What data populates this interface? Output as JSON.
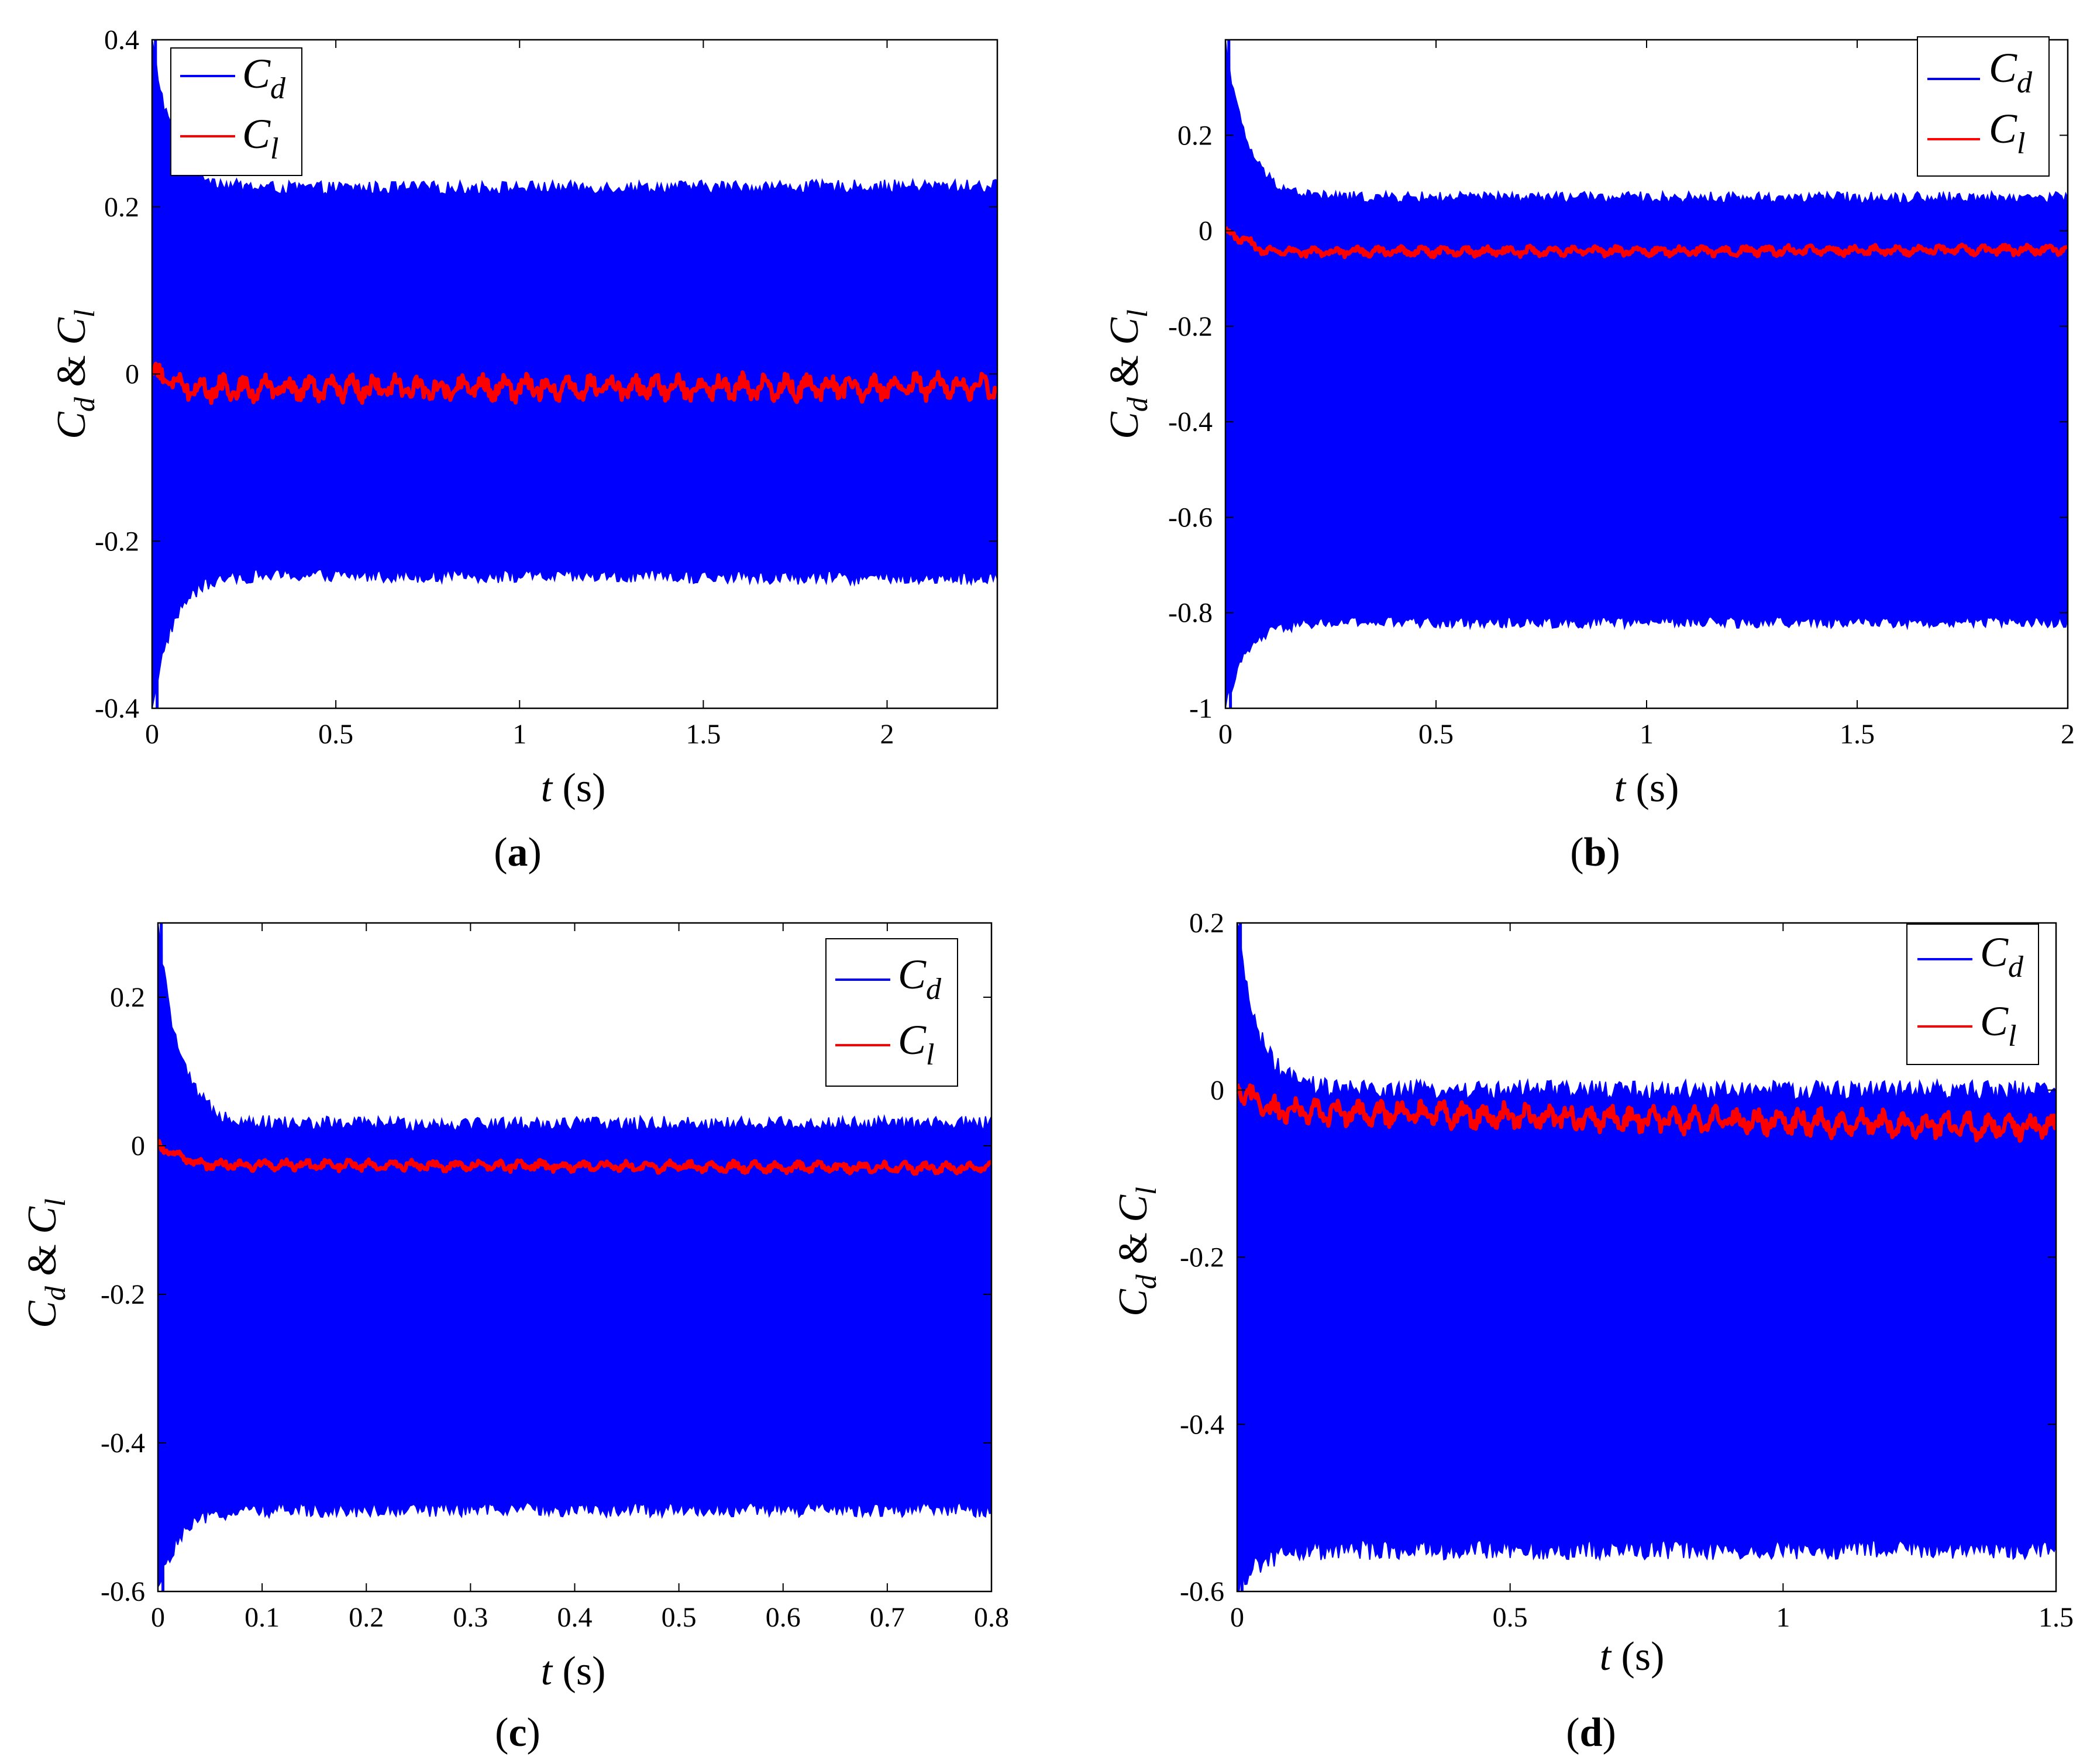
{
  "figure": {
    "colors": {
      "cd": "#0000ff",
      "cl": "#ff0000",
      "axis": "#000000"
    },
    "ylabel": {
      "c1": "C",
      "s1": "d",
      "amp": " & ",
      "c2": "C",
      "s2": "l"
    },
    "xlabel": {
      "var": "t",
      "unit": " (s)"
    }
  },
  "chart_data": [
    {
      "type": "line",
      "panel": "a",
      "xlim": [
        0,
        2.3
      ],
      "ylim": [
        -0.4,
        0.4
      ],
      "xticks": [
        0,
        0.5,
        1,
        1.5,
        2
      ],
      "xtick_labels": [
        "0",
        "0.5",
        "1",
        "1.5",
        "2"
      ],
      "yticks": [
        -0.4,
        -0.2,
        0,
        0.2,
        0.4
      ],
      "ytick_labels": [
        "-0.4",
        "-0.2",
        "0",
        "0.2",
        "0.4"
      ],
      "xlabel": "t (s)",
      "ylabel": "C_d & C_l",
      "legend_position": "top-left",
      "series": [
        {
          "name": "C_d",
          "color": "#0000ff",
          "kind": "band",
          "start_max": 0.4,
          "start_min": -0.4,
          "upper": 0.222,
          "lower": -0.24,
          "upper_end": 0.225,
          "lower_end": -0.245,
          "noise": 0.008
        },
        {
          "name": "C_l",
          "color": "#ff0000",
          "kind": "wiggle",
          "mean": -0.018,
          "mean_end": -0.015,
          "amplitude": 0.015
        }
      ]
    },
    {
      "type": "line",
      "panel": "b",
      "xlim": [
        0,
        2
      ],
      "ylim": [
        -1,
        0.4
      ],
      "xticks": [
        0,
        0.5,
        1,
        1.5,
        2
      ],
      "xtick_labels": [
        "0",
        "0.5",
        "1",
        "1.5",
        "2"
      ],
      "yticks": [
        -1,
        -0.8,
        -0.6,
        -0.4,
        -0.2,
        0,
        0.2
      ],
      "ytick_labels": [
        "-1",
        "-0.8",
        "-0.6",
        "-0.4",
        "-0.2",
        "0",
        "0.2"
      ],
      "xlabel": "t (s)",
      "ylabel": "C_d & C_l",
      "legend_position": "top-right",
      "series": [
        {
          "name": "C_d",
          "color": "#0000ff",
          "kind": "band",
          "start_max": 0.4,
          "start_min": -1.0,
          "upper": 0.07,
          "lower": -0.82,
          "upper_end": 0.07,
          "lower_end": -0.82,
          "noise": 0.012
        },
        {
          "name": "C_l",
          "color": "#ff0000",
          "kind": "wiggle",
          "mean": -0.045,
          "mean_end": -0.04,
          "amplitude": 0.01
        }
      ]
    },
    {
      "type": "line",
      "panel": "c",
      "xlim": [
        0,
        0.8
      ],
      "ylim": [
        -0.6,
        0.3
      ],
      "xticks": [
        0,
        0.1,
        0.2,
        0.3,
        0.4,
        0.5,
        0.6,
        0.7,
        0.8
      ],
      "xtick_labels": [
        "0",
        "0.1",
        "0.2",
        "0.3",
        "0.4",
        "0.5",
        "0.6",
        "0.7",
        "0.8"
      ],
      "yticks": [
        -0.6,
        -0.4,
        -0.2,
        0,
        0.2
      ],
      "ytick_labels": [
        "-0.6",
        "-0.4",
        "-0.2",
        "0",
        "0.2"
      ],
      "xlabel": "t (s)",
      "ylabel": "C_d & C_l",
      "legend_position": "top-right",
      "series": [
        {
          "name": "C_d",
          "color": "#0000ff",
          "kind": "band",
          "start_max": 0.3,
          "start_min": -0.6,
          "upper": 0.03,
          "lower": -0.49,
          "upper_end": 0.03,
          "lower_end": -0.49,
          "noise": 0.01
        },
        {
          "name": "C_l",
          "color": "#ff0000",
          "kind": "wiggle",
          "mean": -0.025,
          "mean_end": -0.03,
          "amplitude": 0.007
        }
      ]
    },
    {
      "type": "line",
      "panel": "d",
      "xlim": [
        0,
        1.5
      ],
      "ylim": [
        -0.6,
        0.2
      ],
      "xticks": [
        0,
        0.5,
        1,
        1.5
      ],
      "xtick_labels": [
        "0",
        "0.5",
        "1",
        "1.5"
      ],
      "yticks": [
        -0.6,
        -0.4,
        -0.2,
        0,
        0.2
      ],
      "ytick_labels": [
        "-0.6",
        "-0.4",
        "-0.2",
        "0",
        "0.2"
      ],
      "xlabel": "t (s)",
      "ylabel": "C_d & C_l",
      "legend_position": "top-right",
      "series": [
        {
          "name": "C_d",
          "color": "#0000ff",
          "kind": "band",
          "start_max": 0.2,
          "start_min": -0.6,
          "upper": 0.0,
          "lower": -0.55,
          "upper_end": 0.0,
          "lower_end": -0.55,
          "noise": 0.012
        },
        {
          "name": "C_l",
          "color": "#ff0000",
          "kind": "wiggle",
          "mean": -0.025,
          "mean_end": -0.045,
          "amplitude": 0.015
        }
      ]
    }
  ],
  "panels": [
    {
      "label_open": "(",
      "letter": "a",
      "label_close": ")"
    },
    {
      "label_open": "(",
      "letter": "b",
      "label_close": ")"
    },
    {
      "label_open": "(",
      "letter": "c",
      "label_close": ")"
    },
    {
      "label_open": "(",
      "letter": "d",
      "label_close": ")"
    }
  ]
}
